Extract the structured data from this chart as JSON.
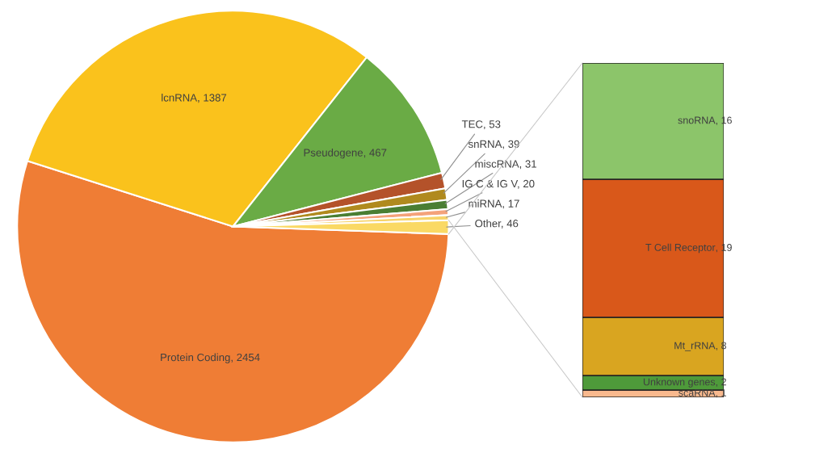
{
  "chart_data": [
    {
      "type": "pie",
      "categories": [
        "Protein Coding",
        "lcnRNA",
        "Pseudogene",
        "TEC",
        "snRNA",
        "miscRNA",
        "IG C & IG V",
        "miRNA",
        "Other"
      ],
      "values": [
        2454,
        1387,
        467,
        53,
        39,
        31,
        20,
        17,
        46
      ],
      "colors": [
        "#ef7d35",
        "#fac21c",
        "#6aab45",
        "#b4522a",
        "#b08a1e",
        "#4a7e33",
        "#f4a27a",
        "#f7d46a",
        "#fad964"
      ],
      "value_labels": [
        ", 2454",
        ", 1387",
        ", 467",
        ", 53",
        ", 39",
        ", 31",
        ", 20",
        ", 17",
        ", 46"
      ]
    },
    {
      "type": "bar",
      "stacked": true,
      "categories": [
        null
      ],
      "series": [
        {
          "name": "scaRNA",
          "color": "#f9b98e",
          "values": [
            1
          ],
          "value_labels": [
            ", 1"
          ]
        },
        {
          "name": "Unknown genes",
          "color": "#4e9a3a",
          "values": [
            2
          ],
          "value_labels": [
            ", 2"
          ]
        },
        {
          "name": "Mt_rRNA",
          "color": "#d9a520",
          "values": [
            8
          ],
          "value_labels": [
            ", 8"
          ]
        },
        {
          "name": "T Cell Receptor",
          "color": "#d9581a",
          "values": [
            19
          ],
          "value_labels": [
            ", 19"
          ]
        },
        {
          "name": "snoRNA",
          "color": "#8cc56a",
          "values": [
            16
          ],
          "value_labels": [
            ", 16"
          ]
        }
      ]
    }
  ]
}
